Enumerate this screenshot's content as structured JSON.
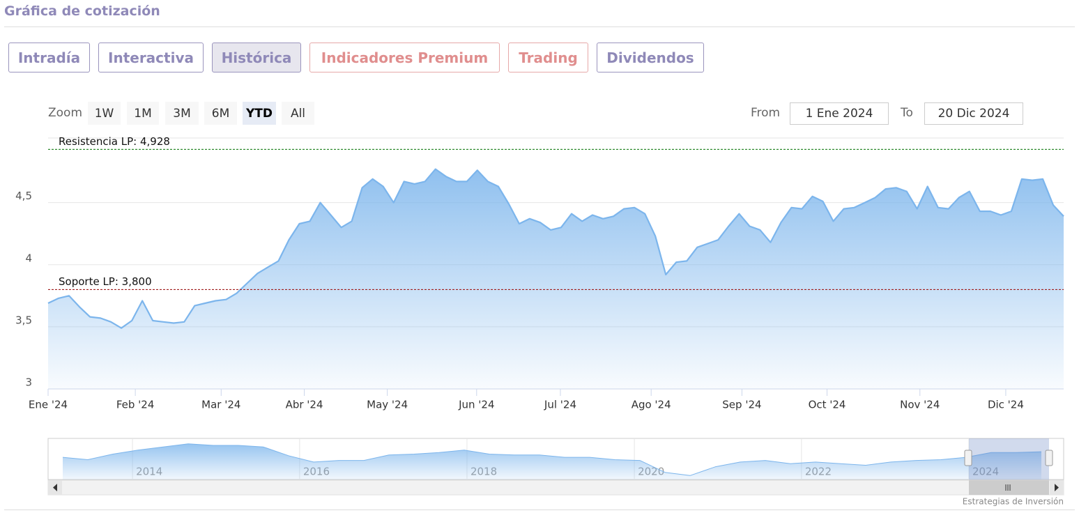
{
  "header": {
    "title": "Gráfica de cotización"
  },
  "tabs": [
    "Intradía",
    "Interactiva",
    "Histórica",
    "Indicadores Premium",
    "Trading",
    "Dividendos"
  ],
  "active_tab": 2,
  "zoom": {
    "label": "Zoom",
    "buttons": [
      "1W",
      "1M",
      "3M",
      "6M",
      "YTD",
      "All"
    ],
    "selected": 4
  },
  "range": {
    "from_label": "From",
    "from": "1 Ene 2024",
    "to_label": "To",
    "to": "20 Dic 2024"
  },
  "chart_data": [
    {
      "type": "area",
      "color": "#7cb5ec",
      "values": [
        3.69,
        3.73,
        3.75,
        3.66,
        3.58,
        3.57,
        3.54,
        3.49,
        3.55,
        3.71,
        3.55,
        3.54,
        3.53,
        3.54,
        3.67,
        3.69,
        3.71,
        3.72,
        3.77,
        3.85,
        3.93,
        3.98,
        4.03,
        4.2,
        4.33,
        4.35,
        4.5,
        4.4,
        4.3,
        4.35,
        4.62,
        4.69,
        4.63,
        4.5,
        4.67,
        4.65,
        4.67,
        4.77,
        4.71,
        4.67,
        4.67,
        4.76,
        4.67,
        4.63,
        4.49,
        4.33,
        4.37,
        4.34,
        4.28,
        4.3,
        4.41,
        4.35,
        4.4,
        4.37,
        4.39,
        4.45,
        4.46,
        4.41,
        4.23,
        3.92,
        4.02,
        4.03,
        4.14,
        4.17,
        4.2,
        4.31,
        4.41,
        4.31,
        4.28,
        4.18,
        4.34,
        4.46,
        4.45,
        4.55,
        4.51,
        4.35,
        4.45,
        4.46,
        4.5,
        4.54,
        4.61,
        4.62,
        4.59,
        4.45,
        4.63,
        4.46,
        4.45,
        4.54,
        4.59,
        4.43,
        4.43,
        4.4,
        4.43,
        4.69,
        4.68,
        4.69,
        4.48,
        4.39
      ],
      "xlim": [
        0,
        97
      ],
      "xticks": [
        {
          "value": 0,
          "label": "Ene '24"
        },
        {
          "value": 8.33,
          "label": "Feb '24"
        },
        {
          "value": 16.53,
          "label": "Mar '24"
        },
        {
          "value": 24.47,
          "label": "Abr '24"
        },
        {
          "value": 32.4,
          "label": "May '24"
        },
        {
          "value": 40.93,
          "label": "Jun '24"
        },
        {
          "value": 48.93,
          "label": "Jul '24"
        },
        {
          "value": 57.6,
          "label": "Ago '24"
        },
        {
          "value": 66.27,
          "label": "Sep '24"
        },
        {
          "value": 74.4,
          "label": "Oct '24"
        },
        {
          "value": 83.27,
          "label": "Nov '24"
        },
        {
          "value": 91.47,
          "label": "Dic '24"
        }
      ],
      "ylim": [
        3,
        5.02
      ],
      "yticks": [
        3,
        {
          "value": 3.5,
          "label": "3,5"
        },
        4,
        {
          "value": 4.5,
          "label": "4,5"
        }
      ],
      "grid": true,
      "annotations": [
        {
          "label": "Resistencia LP: 4,928",
          "value": 4.928,
          "color": "#2e8b2e"
        },
        {
          "label": "Soporte LP: 3,800",
          "value": 3.8,
          "color": "#a01e1e"
        }
      ]
    },
    {
      "type": "area",
      "color": "#7cb5ec",
      "values": [
        4.3,
        4.0,
        4.7,
        5.2,
        5.6,
        6.0,
        5.8,
        5.8,
        5.6,
        4.5,
        3.7,
        3.9,
        3.9,
        4.6,
        4.7,
        4.9,
        5.2,
        4.7,
        4.6,
        4.6,
        4.3,
        4.3,
        4.0,
        3.9,
        2.4,
        2.0,
        3.1,
        3.7,
        3.9,
        3.5,
        3.7,
        3.5,
        3.3,
        3.7,
        3.9,
        4.0,
        4.3,
        4.9,
        4.9,
        5.0
      ],
      "xlim": [
        0,
        39
      ],
      "xticks": [
        {
          "value": 2.78,
          "label": "2014"
        },
        {
          "value": 9.44,
          "label": "2016"
        },
        {
          "value": 16.11,
          "label": "2018"
        },
        {
          "value": 22.78,
          "label": "2020"
        },
        {
          "value": 29.44,
          "label": "2022"
        },
        {
          "value": 36.11,
          "label": "2024"
        }
      ],
      "ylim": [
        1.5,
        6.5
      ]
    }
  ],
  "source": "Estrategias de Inversión"
}
